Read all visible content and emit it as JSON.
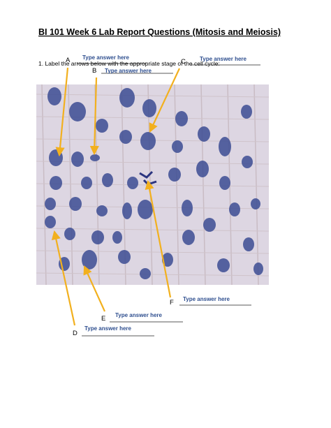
{
  "header": {
    "title": "BI 101 Week 6 Lab Report Questions (Mitosis and Meiosis)"
  },
  "question": "1. Label the arrows below with the appropriate stage of the cell cycle:",
  "labels": [
    {
      "letter": "A",
      "answer": "Type answer here"
    },
    {
      "letter": "B",
      "answer": "Type answer here"
    },
    {
      "letter": "C",
      "answer": "Type answer here"
    },
    {
      "letter": "F",
      "answer": "Type answer here"
    },
    {
      "letter": "E",
      "answer": "Type answer here"
    },
    {
      "letter": "D",
      "answer": "Type answer here"
    }
  ]
}
